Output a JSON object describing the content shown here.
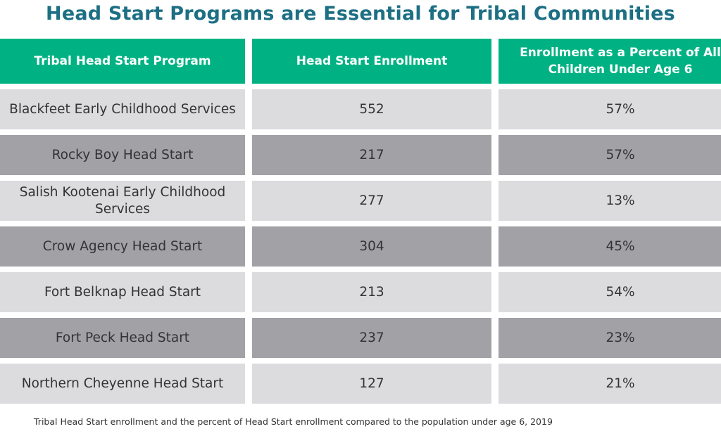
{
  "title": "Head Start Programs are Essential for Tribal Communities",
  "columns": [
    "Tribal Head Start Program",
    "Head Start Enrollment",
    "Enrollment as a Percent of All Children Under Age 6"
  ],
  "rows": [
    {
      "program": "Blackfeet Early Childhood Services",
      "enrollment": "552",
      "percent": "57%"
    },
    {
      "program": "Rocky Boy Head Start",
      "enrollment": "217",
      "percent": "57%"
    },
    {
      "program": "Salish Kootenai Early Childhood Services",
      "enrollment": "277",
      "percent": "13%"
    },
    {
      "program": "Crow Agency Head Start",
      "enrollment": "304",
      "percent": "45%"
    },
    {
      "program": "Fort Belknap Head Start",
      "enrollment": "213",
      "percent": "54%"
    },
    {
      "program": "Fort Peck Head Start",
      "enrollment": "237",
      "percent": "23%"
    },
    {
      "program": "Northern Cheyenne Head Start",
      "enrollment": "127",
      "percent": "21%"
    }
  ],
  "footnote": "Tribal Head Start enrollment and the percent of Head Start enrollment compared to the population under age 6, 2019",
  "colors": {
    "title": "#1d6f84",
    "header": "#00b283",
    "row_light": "#dcdcde",
    "row_dark": "#a2a1a6"
  },
  "chart_data": {
    "type": "table",
    "title": "Head Start Programs are Essential for Tribal Communities",
    "columns": [
      "Tribal Head Start Program",
      "Head Start Enrollment",
      "Enrollment as a Percent of All Children Under Age 6"
    ],
    "categories": [
      "Blackfeet Early Childhood Services",
      "Rocky Boy Head Start",
      "Salish Kootenai Early Childhood Services",
      "Crow Agency Head Start",
      "Fort Belknap Head Start",
      "Fort Peck Head Start",
      "Northern Cheyenne Head Start"
    ],
    "series": [
      {
        "name": "Head Start Enrollment",
        "values": [
          552,
          217,
          277,
          304,
          213,
          237,
          127
        ]
      },
      {
        "name": "Enrollment as a Percent of All Children Under Age 6",
        "values": [
          57,
          57,
          13,
          45,
          54,
          23,
          21
        ],
        "unit": "%"
      }
    ]
  }
}
